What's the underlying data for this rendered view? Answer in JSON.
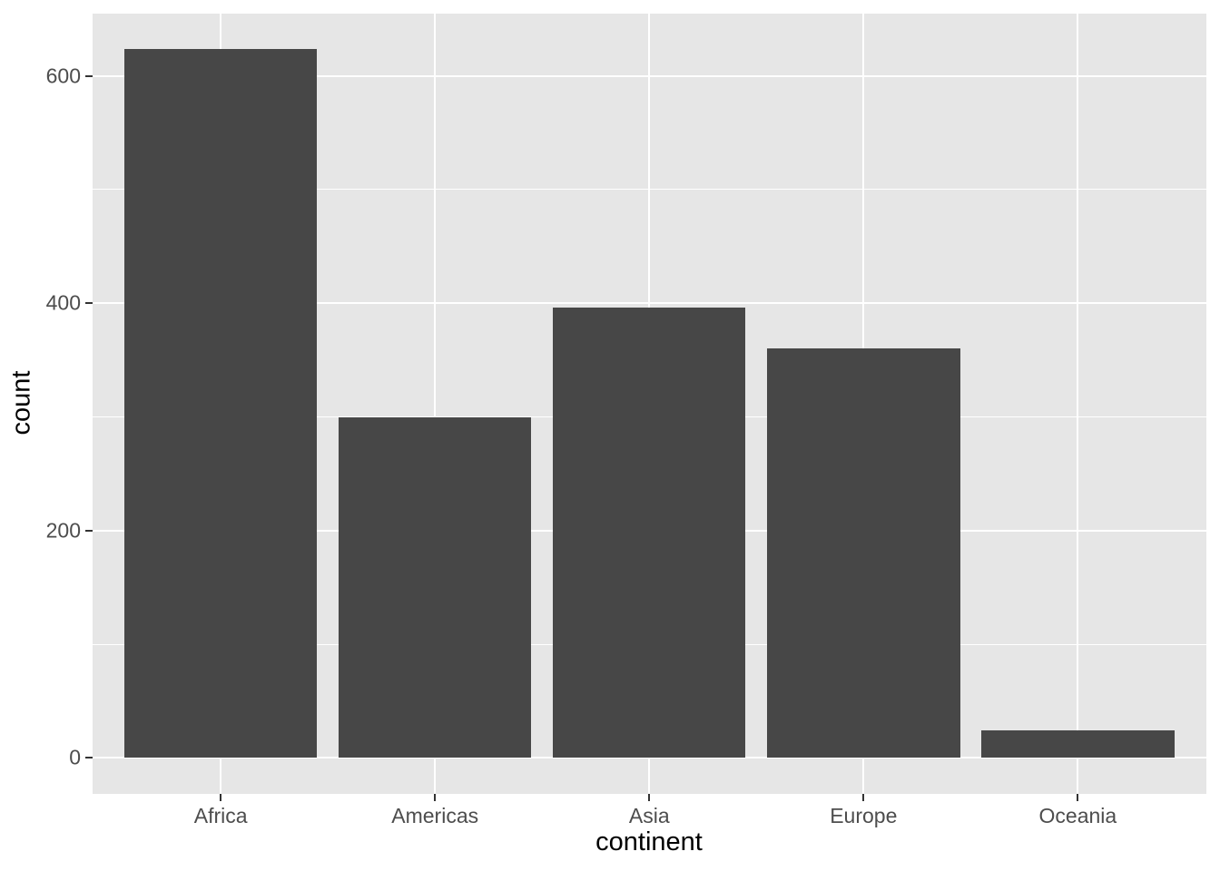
{
  "chart_data": {
    "type": "bar",
    "categories": [
      "Africa",
      "Americas",
      "Asia",
      "Europe",
      "Oceania"
    ],
    "values": [
      624,
      300,
      396,
      360,
      24
    ],
    "title": "",
    "xlabel": "continent",
    "ylabel": "count",
    "ylim": [
      -31.2,
      655.2
    ],
    "x_range": [
      0.4,
      5.6
    ],
    "y_major_ticks": [
      0,
      200,
      400,
      600
    ],
    "y_minor_ticks": [
      100,
      300,
      500
    ],
    "bar_width_units": 0.9,
    "grid": true,
    "legend_position": "none",
    "colors": {
      "bar_fill": "#474747",
      "panel_background": "#E6E6E6",
      "grid_major": "#FFFFFF",
      "grid_minor": "#FFFFFF",
      "axis_text": "#4D4D4D",
      "axis_title": "#000000",
      "tick_mark": "#333333",
      "page_background": "#FFFFFF"
    }
  }
}
